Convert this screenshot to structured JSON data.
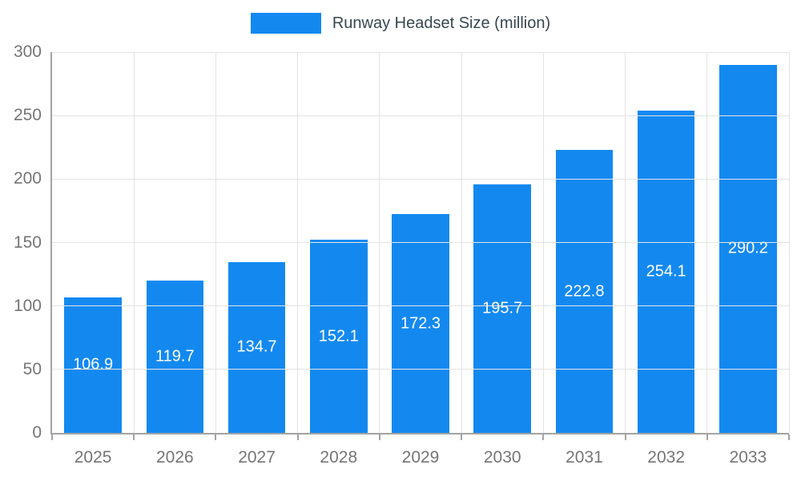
{
  "chart_data": {
    "type": "bar",
    "title": "Runway Headset Size (million)",
    "categories": [
      "2025",
      "2026",
      "2027",
      "2028",
      "2029",
      "2030",
      "2031",
      "2032",
      "2033"
    ],
    "values": [
      106.9,
      119.7,
      134.7,
      152.1,
      172.3,
      195.7,
      222.8,
      254.1,
      290.2
    ],
    "xlabel": "",
    "ylabel": "",
    "ylim": [
      0,
      300
    ],
    "ytick_step": 50,
    "grid": true,
    "legend_position": "top",
    "bar_color": "#1389f0",
    "value_label_color": "#ffffff",
    "axis_text_color": "#757575",
    "legend_text_color": "#37474f",
    "gridline_color": "#e3e3e3",
    "axis_line_color": "#a3a3a3"
  }
}
